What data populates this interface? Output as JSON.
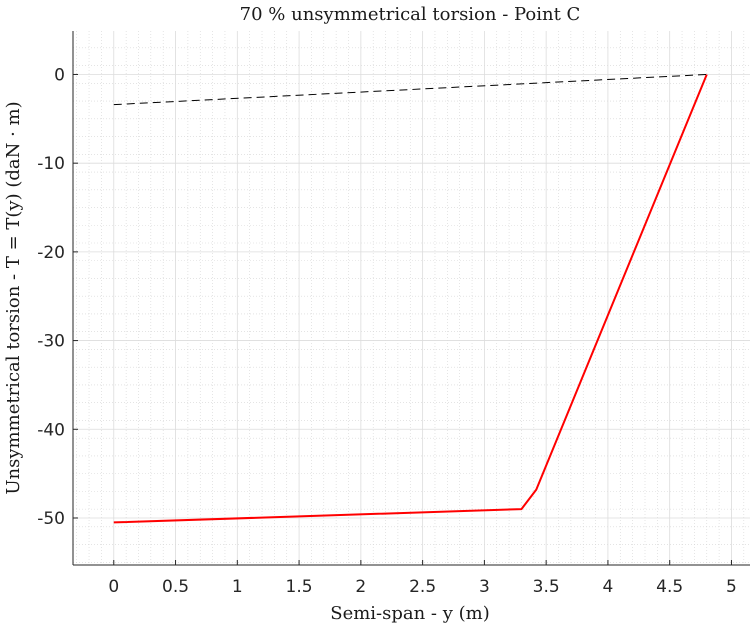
{
  "chart_data": {
    "type": "line",
    "title": "70 % unsymmetrical torsion - Point C",
    "xlabel": "Semi-span - y (m)",
    "ylabel": "Unsymmetrical torsion - T = T(y) (daN · m)",
    "xlim": [
      -0.33,
      5.15
    ],
    "ylim": [
      -55.3,
      4.9
    ],
    "xticks": [
      0,
      0.5,
      1,
      1.5,
      2,
      2.5,
      3,
      3.5,
      4,
      4.5,
      5
    ],
    "xtick_labels": [
      "0",
      "0.5",
      "1",
      "1.5",
      "2",
      "2.5",
      "3",
      "3.5",
      "4",
      "4.5",
      "5"
    ],
    "yticks": [
      0,
      -10,
      -20,
      -30,
      -40,
      -50
    ],
    "ytick_labels": [
      "0",
      "-10",
      "-20",
      "-30",
      "-40",
      "-50"
    ],
    "grid": true,
    "minor_grid": true,
    "series": [
      {
        "color": "#ff0000",
        "style": "solid",
        "x": [
          0,
          3.3,
          3.42,
          4.8
        ],
        "y": [
          -50.5,
          -49.0,
          -46.8,
          0
        ]
      },
      {
        "color": "#000000",
        "style": "dashed",
        "x": [
          0,
          4.8
        ],
        "y": [
          -3.4,
          0
        ]
      }
    ]
  }
}
